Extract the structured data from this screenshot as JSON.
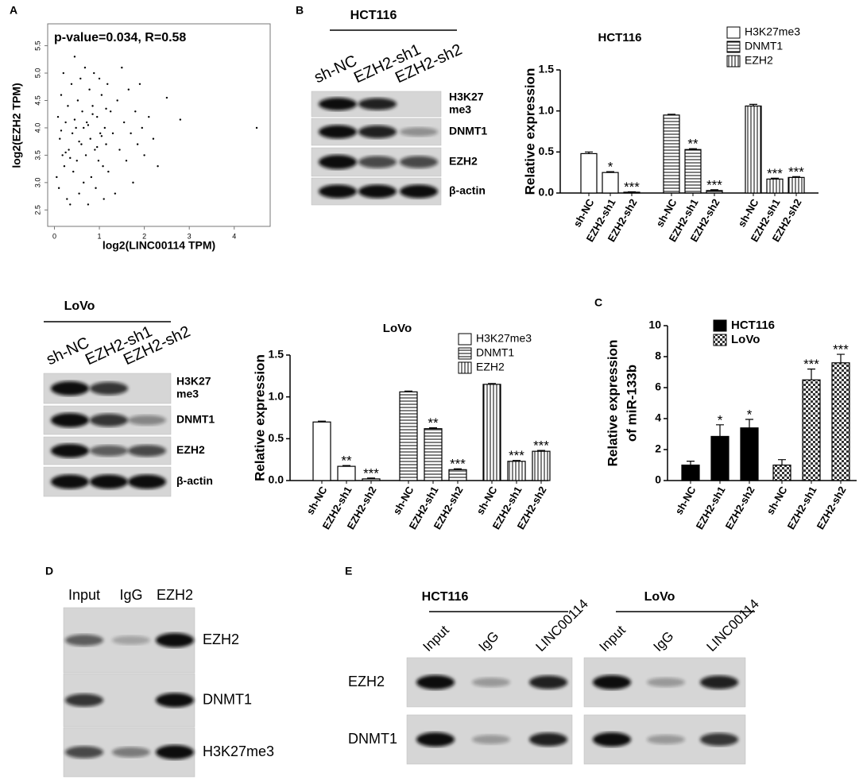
{
  "chart_data": [
    {
      "type": "scatter",
      "annotation": "p-value=0.034, R=0.58",
      "xlabel": "log2(LINC00114 TPM)",
      "ylabel": "log2(EZH2 TPM)",
      "color": "#000000",
      "x": [
        0.05,
        0.08,
        0.1,
        0.12,
        0.15,
        0.18,
        0.2,
        0.22,
        0.25,
        0.28,
        0.3,
        0.32,
        0.35,
        0.38,
        0.4,
        0.42,
        0.45,
        0.48,
        0.5,
        0.52,
        0.55,
        0.58,
        0.6,
        0.62,
        0.65,
        0.68,
        0.7,
        0.72,
        0.75,
        0.78,
        0.8,
        0.82,
        0.85,
        0.88,
        0.9,
        0.92,
        0.95,
        0.98,
        1.0,
        1.02,
        1.05,
        1.08,
        1.1,
        1.12,
        1.15,
        1.18,
        1.2,
        1.25,
        1.3,
        1.35,
        1.4,
        1.45,
        1.5,
        1.55,
        1.6,
        1.65,
        1.7,
        1.75,
        1.8,
        1.85,
        1.9,
        1.95,
        2.0,
        2.1,
        2.2,
        2.3,
        2.5,
        2.8,
        4.5,
        0.15,
        0.45,
        0.75,
        1.05,
        0.25,
        0.55,
        0.85,
        1.15,
        0.35,
        0.65,
        0.95
      ],
      "values": [
        3.1,
        4.2,
        2.9,
        3.8,
        4.6,
        3.5,
        5.0,
        3.3,
        4.1,
        2.7,
        4.4,
        3.6,
        2.6,
        4.8,
        3.9,
        3.2,
        5.3,
        4.0,
        3.4,
        4.5,
        2.8,
        4.9,
        3.7,
        4.3,
        3.0,
        5.1,
        3.5,
        4.1,
        2.6,
        4.7,
        3.8,
        3.1,
        4.4,
        5.0,
        3.6,
        2.9,
        4.2,
        3.4,
        4.9,
        3.9,
        4.6,
        3.3,
        2.7,
        4.0,
        3.7,
        4.8,
        3.2,
        4.3,
        3.9,
        2.8,
        4.5,
        3.6,
        5.1,
        4.1,
        3.4,
        4.7,
        3.9,
        3.0,
        4.3,
        3.7,
        4.8,
        4.0,
        3.5,
        4.2,
        3.8,
        3.3,
        4.55,
        4.15,
        4.0,
        3.95,
        4.15,
        4.05,
        3.85,
        3.55,
        3.75,
        4.25,
        4.35,
        3.45,
        4.0,
        3.65
      ],
      "xlim": [
        -0.15,
        4.8
      ],
      "ylim": [
        2.2,
        5.9
      ],
      "xticks": [
        0,
        1,
        2,
        3,
        4
      ],
      "yticks": [
        2.5,
        {
          "value": 3,
          "label": "3.0"
        },
        3.5,
        {
          "value": 4,
          "label": "4.0"
        },
        4.5,
        {
          "value": 5,
          "label": "5.0"
        },
        5.5
      ]
    },
    {
      "type": "bar",
      "title": "HCT116",
      "ylabel": "Relative expression",
      "categories": [
        "sh-NC",
        "EZH2-sh1",
        "EZH2-sh2"
      ],
      "legend": "upper right",
      "series": [
        {
          "name": "H3K27me3",
          "pattern": "none",
          "color": "#000000",
          "values": [
            0.48,
            0.25,
            0.01
          ],
          "errors": [
            0.02,
            0.01,
            0.005
          ],
          "annotations": [
            null,
            "*",
            "***"
          ]
        },
        {
          "name": "DNMT1",
          "pattern": "horizontal",
          "color": "#000000",
          "values": [
            0.95,
            0.53,
            0.03
          ],
          "errors": [
            0.01,
            0.01,
            0.01
          ],
          "annotations": [
            null,
            "**",
            "***"
          ]
        },
        {
          "name": "EZH2",
          "pattern": "vertical",
          "color": "#000000",
          "values": [
            1.06,
            0.17,
            0.19
          ],
          "errors": [
            0.02,
            0.01,
            0.01
          ],
          "annotations": [
            null,
            "***",
            "***"
          ]
        }
      ],
      "ylim": [
        0,
        1.5
      ],
      "yticks": [
        {
          "value": 0,
          "label": "0.0"
        },
        0.5,
        {
          "value": 1,
          "label": "1.0"
        },
        1.5
      ]
    },
    {
      "type": "bar",
      "title": "LoVo",
      "ylabel": "Relative expression",
      "categories": [
        "sh-NC",
        "EZH2-sh1",
        "EZH2-sh2"
      ],
      "legend": "upper right",
      "series": [
        {
          "name": "H3K27me3",
          "pattern": "none",
          "color": "#000000",
          "values": [
            0.7,
            0.17,
            0.02
          ],
          "errors": [
            0.01,
            0.01,
            0.01
          ],
          "annotations": [
            null,
            "**",
            "***"
          ]
        },
        {
          "name": "DNMT1",
          "pattern": "horizontal",
          "color": "#000000",
          "values": [
            1.06,
            0.62,
            0.13
          ],
          "errors": [
            0.01,
            0.01,
            0.01
          ],
          "annotations": [
            null,
            "**",
            "***"
          ]
        },
        {
          "name": "EZH2",
          "pattern": "vertical",
          "color": "#000000",
          "values": [
            1.15,
            0.23,
            0.35
          ],
          "errors": [
            0.01,
            0.01,
            0.01
          ],
          "annotations": [
            null,
            "***",
            "***"
          ]
        }
      ],
      "ylim": [
        0,
        1.5
      ],
      "yticks": [
        {
          "value": 0,
          "label": "0.0"
        },
        0.5,
        {
          "value": 1,
          "label": "1.0"
        },
        1.5
      ]
    },
    {
      "type": "bar",
      "ylabel": [
        "Relative expression",
        "of miR-133b"
      ],
      "categories": [
        "sh-NC",
        "EZH2-sh1",
        "EZH2-sh2"
      ],
      "legend": "upper left",
      "series": [
        {
          "name": "HCT116",
          "pattern": "solid",
          "color": "#000000",
          "values": [
            1.0,
            2.85,
            3.4
          ],
          "errors": [
            0.25,
            0.75,
            0.55
          ],
          "annotations": [
            null,
            "*",
            "*"
          ]
        },
        {
          "name": "LoVo",
          "pattern": "checker",
          "color": "#000000",
          "values": [
            1.0,
            6.5,
            7.6
          ],
          "errors": [
            0.35,
            0.7,
            0.55
          ],
          "annotations": [
            null,
            "***",
            "***"
          ]
        }
      ],
      "ylim": [
        0,
        10
      ],
      "yticks": [
        0,
        2,
        4,
        6,
        8,
        10
      ]
    }
  ],
  "panel_labels": [
    "A",
    "B",
    "C",
    "D",
    "E"
  ],
  "blots": [
    {
      "header": "HCT116",
      "lanes": [
        "sh-NC",
        "EZH2-sh1",
        "EZH2-sh2"
      ],
      "rows": [
        [
          "H3K27",
          "me3"
        ],
        [
          "DNMT1"
        ],
        [
          "EZH2"
        ],
        [
          "β-actin"
        ]
      ]
    },
    {
      "header": "LoVo",
      "lanes": [
        "sh-NC",
        "EZH2-sh1",
        "EZH2-sh2"
      ],
      "rows": [
        [
          "H3K27",
          "me3"
        ],
        [
          "DNMT1"
        ],
        [
          "EZH2"
        ],
        [
          "β-actin"
        ]
      ]
    },
    {
      "lanes": [
        "Input",
        "IgG",
        "EZH2"
      ],
      "rows": [
        [
          "EZH2"
        ],
        [
          "DNMT1"
        ],
        [
          "H3K27me3"
        ]
      ]
    },
    {
      "header": "HCT116",
      "lanes": [
        "Input",
        "IgG",
        "LINC00114"
      ],
      "rows": [
        [
          "EZH2"
        ],
        [
          "DNMT1"
        ]
      ]
    },
    {
      "header": "LoVo",
      "lanes": [
        "Input",
        "IgG",
        "LINC00114"
      ]
    }
  ]
}
